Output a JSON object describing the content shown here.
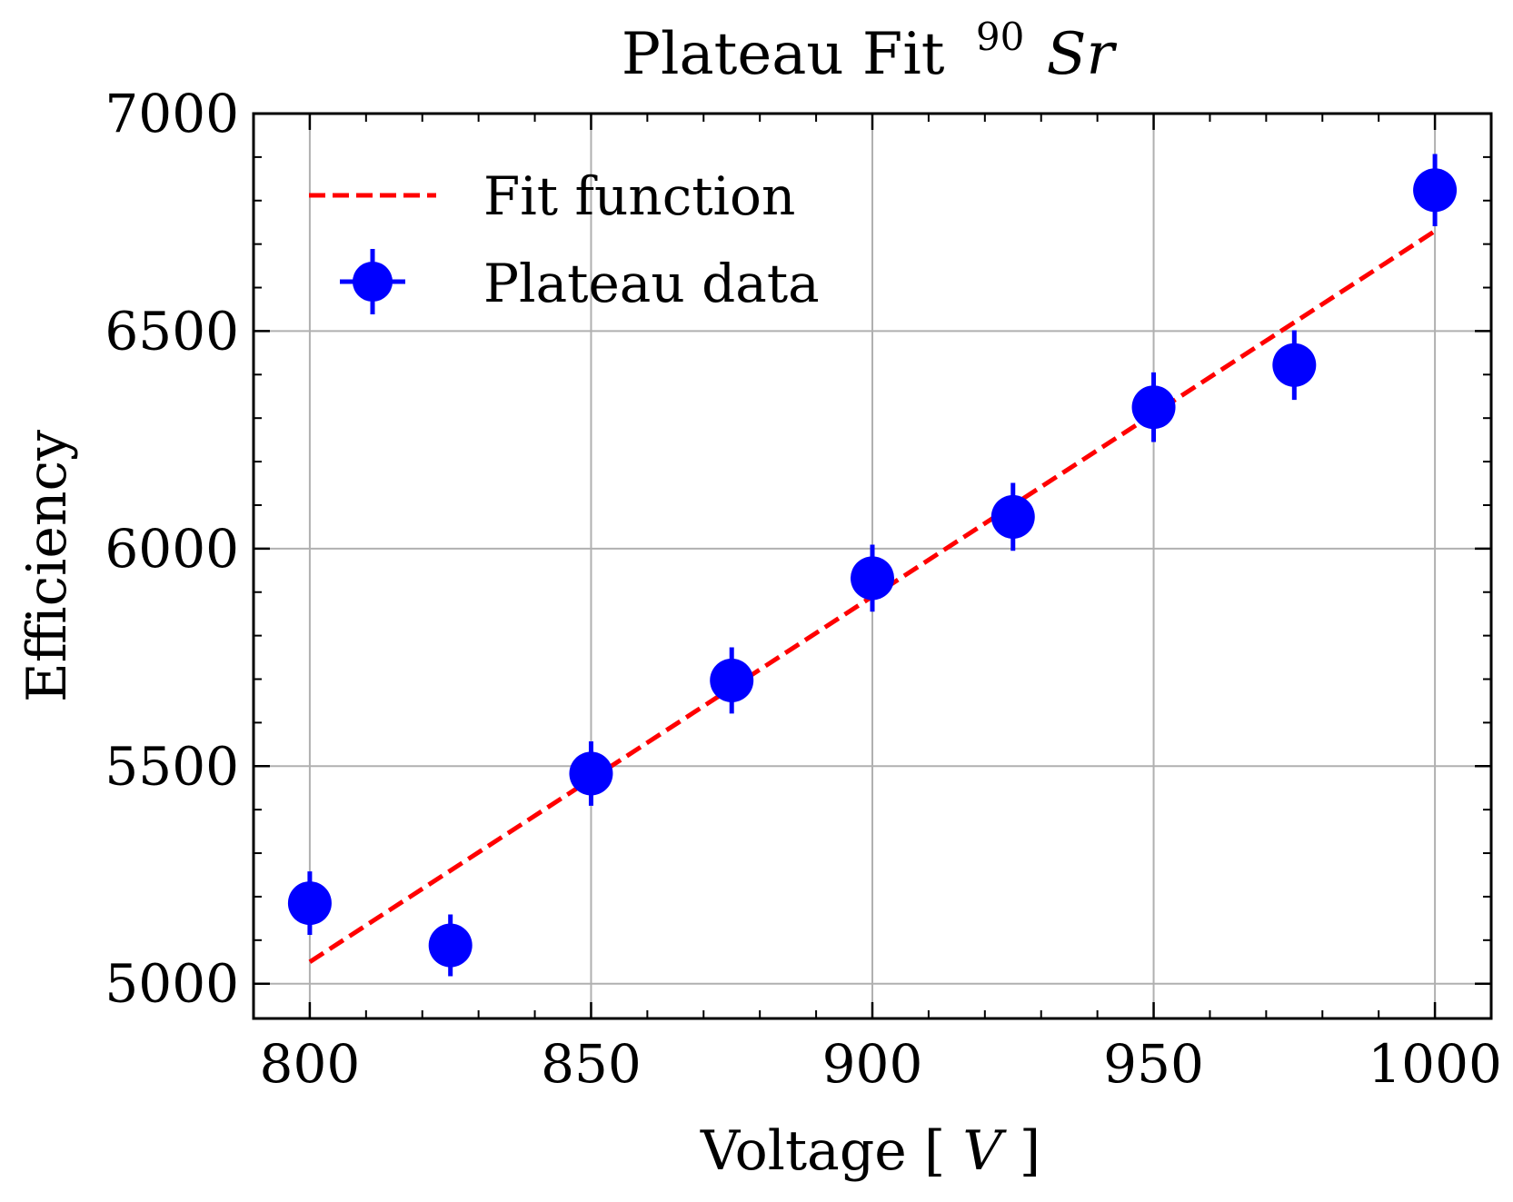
{
  "chart_data": {
    "type": "scatter",
    "title": "Plateau Fit",
    "title_sup": "90",
    "title_element": "Sr",
    "xlabel_main": "Voltage ",
    "xlabel_unit_open": "[",
    "xlabel_unit": "V",
    "xlabel_unit_close": "]",
    "ylabel": "Efficiency",
    "xlim": [
      790,
      1010
    ],
    "ylim": [
      4920,
      7000
    ],
    "xticks": [
      800,
      850,
      900,
      950,
      1000
    ],
    "yticks": [
      5000,
      5500,
      6000,
      6500,
      7000
    ],
    "x_minor_step": 10,
    "y_minor_step": 100,
    "grid": true,
    "legend_position": "upper-left",
    "series": [
      {
        "name": "Fit function",
        "kind": "line",
        "style": "dashed",
        "color": "#ff0000",
        "x": [
          800,
          1000
        ],
        "y": [
          5050,
          6730
        ]
      },
      {
        "name": "Plateau data",
        "kind": "errorbar",
        "color": "#0000ff",
        "x": [
          800,
          825,
          850,
          875,
          900,
          925,
          950,
          975,
          1000
        ],
        "y": [
          5185,
          5088,
          5483,
          5697,
          5932,
          6073,
          6325,
          6422,
          6824
        ],
        "yerr": [
          73,
          71,
          74,
          76,
          77,
          78,
          80,
          80,
          83
        ]
      }
    ]
  }
}
